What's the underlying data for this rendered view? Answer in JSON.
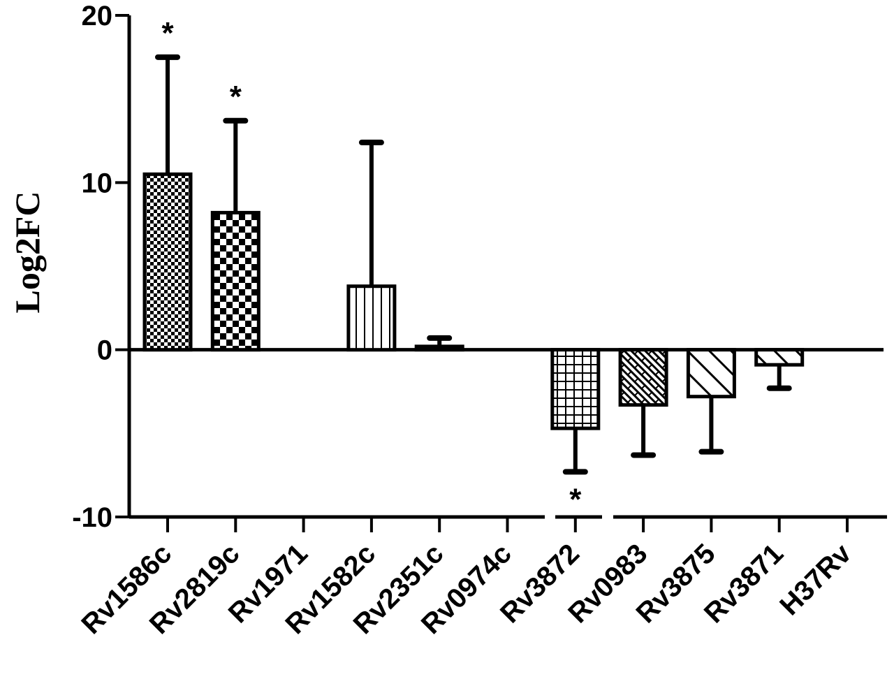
{
  "chart_data": {
    "type": "bar",
    "title": "",
    "xlabel": "",
    "ylabel": "Log2FC",
    "ylim": [
      -10,
      20
    ],
    "yticks": [
      -10,
      0,
      10,
      20
    ],
    "grid": false,
    "legend": "none",
    "categories": [
      "Rv1586c",
      "Rv2819c",
      "Rv1971",
      "Rv1582c",
      "Rv2351c",
      "Rv0974c",
      "Rv3872",
      "Rv0983",
      "Rv3875",
      "Rv3871",
      "H37Rv"
    ],
    "values": [
      10.5,
      8.2,
      0,
      3.8,
      0.2,
      0,
      -4.7,
      -3.3,
      -2.8,
      -0.9,
      0
    ],
    "error_values": [
      17.5,
      13.7,
      null,
      12.4,
      0.7,
      null,
      -7.3,
      -6.3,
      -6.1,
      -2.3,
      null
    ],
    "significant": [
      "*",
      "*",
      "",
      "",
      "",
      "",
      "*",
      "",
      "",
      "",
      ""
    ],
    "patterns": [
      "checker-fine",
      "checker-coarse",
      "none",
      "vertical-lines",
      "horizontal-lines",
      "none",
      "grid",
      "brick",
      "diagonal",
      "diagonal",
      "none"
    ]
  }
}
